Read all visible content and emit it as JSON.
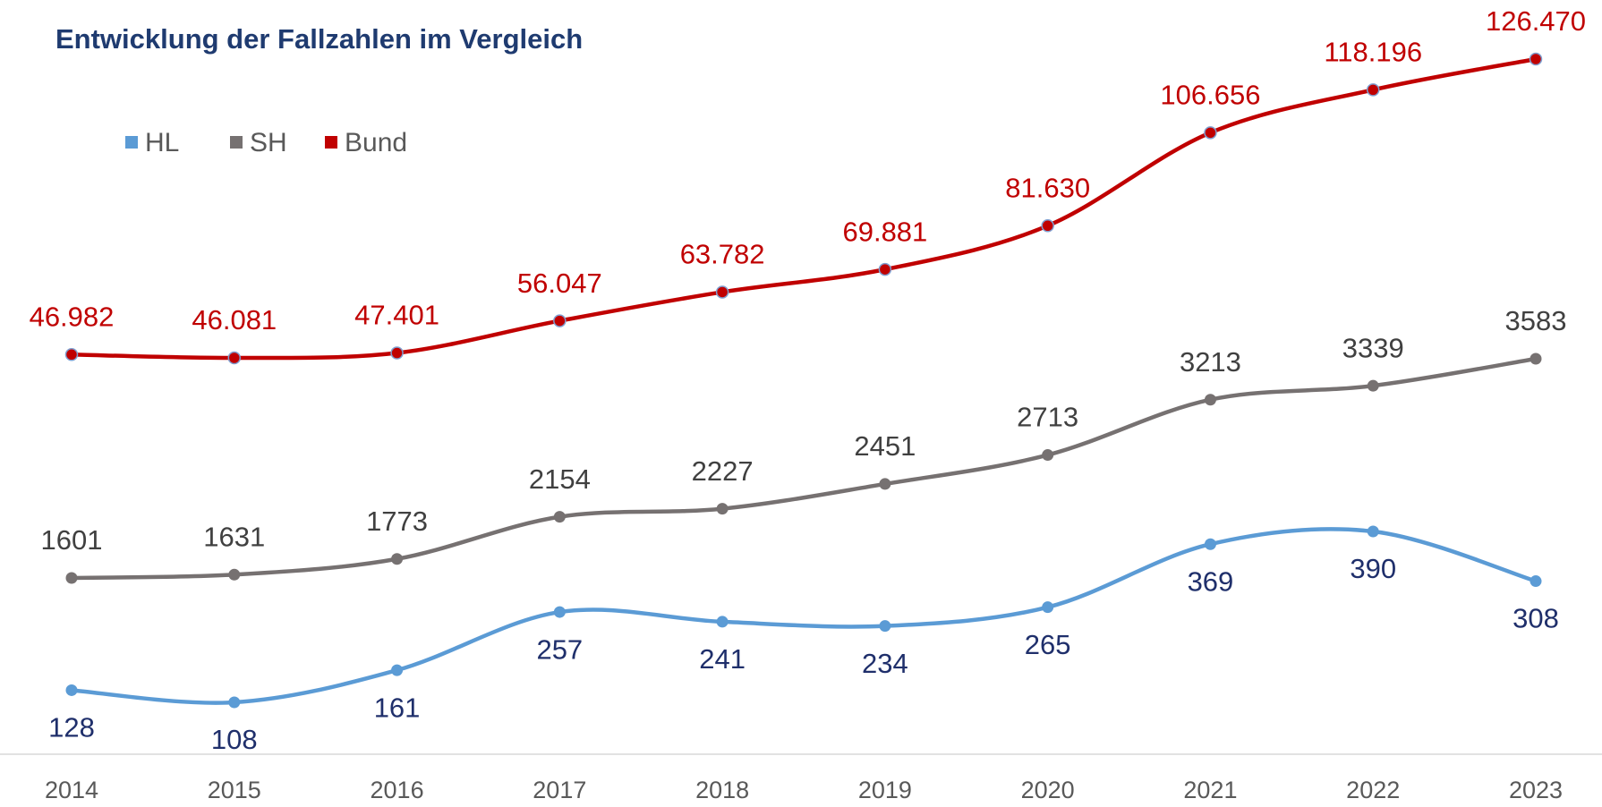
{
  "chart_data": {
    "type": "line",
    "title": "Entwicklung der Fallzahlen im Vergleich",
    "categories": [
      "2014",
      "2015",
      "2016",
      "2017",
      "2018",
      "2019",
      "2020",
      "2021",
      "2022",
      "2023"
    ],
    "series": [
      {
        "name": "HL",
        "color": "#5b9bd5",
        "values": [
          128,
          108,
          161,
          257,
          241,
          234,
          265,
          369,
          390,
          308
        ]
      },
      {
        "name": "SH",
        "color": "#767171",
        "values": [
          1601,
          1631,
          1773,
          2154,
          2227,
          2451,
          2713,
          3213,
          3339,
          3583
        ]
      },
      {
        "name": "Bund",
        "color": "#c00000",
        "values": [
          46982,
          46081,
          47401,
          56047,
          63782,
          69881,
          81630,
          106656,
          118196,
          126470
        ],
        "value_labels": [
          "46.982",
          "46.081",
          "47.401",
          "56.047",
          "63.782",
          "69.881",
          "81.630",
          "106.656",
          "118.196",
          "126.470"
        ]
      }
    ]
  }
}
